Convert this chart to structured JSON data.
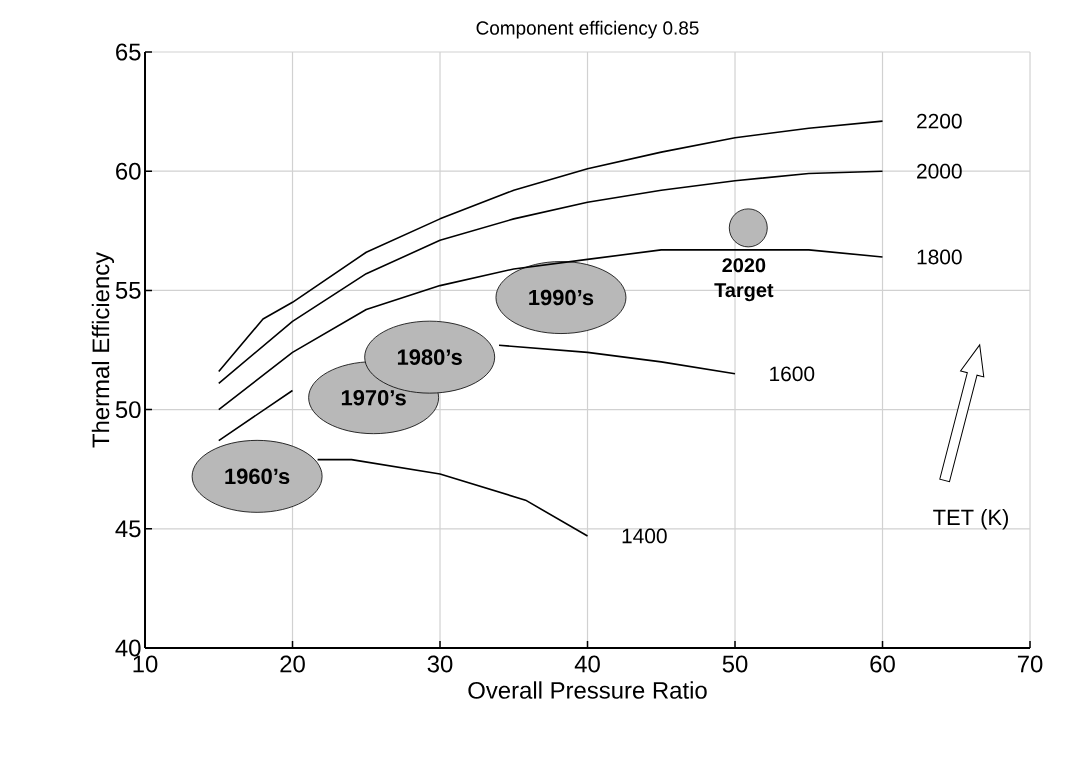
{
  "chart_data": {
    "type": "line",
    "title": "Component efficiency 0.85",
    "xlabel": "Overall Pressure Ratio",
    "ylabel": "Thermal Efficiency",
    "xlim": [
      10,
      70
    ],
    "ylim": [
      40,
      65
    ],
    "xticks": [
      10,
      20,
      30,
      40,
      50,
      60,
      70
    ],
    "yticks": [
      40,
      45,
      50,
      55,
      60,
      65
    ],
    "grid": true,
    "marker": "none",
    "line_style": "solid",
    "series": [
      {
        "name": "2200",
        "color": "#000000",
        "x": [
          15,
          18,
          20,
          25,
          30,
          35,
          40,
          45,
          50,
          55,
          60
        ],
        "values": [
          51.6,
          53.8,
          54.5,
          56.6,
          58.0,
          59.2,
          60.1,
          60.8,
          61.4,
          61.8,
          62.1
        ]
      },
      {
        "name": "2000",
        "color": "#000000",
        "x": [
          15,
          20,
          25,
          30,
          35,
          40,
          45,
          50,
          55,
          60
        ],
        "values": [
          51.1,
          53.7,
          55.7,
          57.1,
          58.0,
          58.7,
          59.2,
          59.6,
          59.9,
          60.0
        ]
      },
      {
        "name": "1800",
        "color": "#000000",
        "x": [
          15,
          20,
          25,
          30,
          35,
          40,
          45,
          50,
          55,
          60
        ],
        "values": [
          50.0,
          52.4,
          54.2,
          55.2,
          55.9,
          56.3,
          56.7,
          56.7,
          56.7,
          56.4
        ]
      },
      {
        "name": "1600",
        "color": "#000000",
        "x": [
          15,
          20,
          27,
          34,
          40,
          45,
          50
        ],
        "values": [
          48.7,
          50.8,
          null,
          52.7,
          52.4,
          52.0,
          51.5
        ]
      },
      {
        "name": "1400",
        "color": "#000000",
        "x": [
          21.7,
          24,
          30,
          35.8,
          40
        ],
        "values": [
          47.9,
          47.9,
          47.3,
          46.2,
          44.7
        ]
      }
    ],
    "annotations": [
      "1960’s",
      "1970’s",
      "1980’s",
      "1990’s",
      "2020 Target",
      "TET (K)"
    ]
  }
}
